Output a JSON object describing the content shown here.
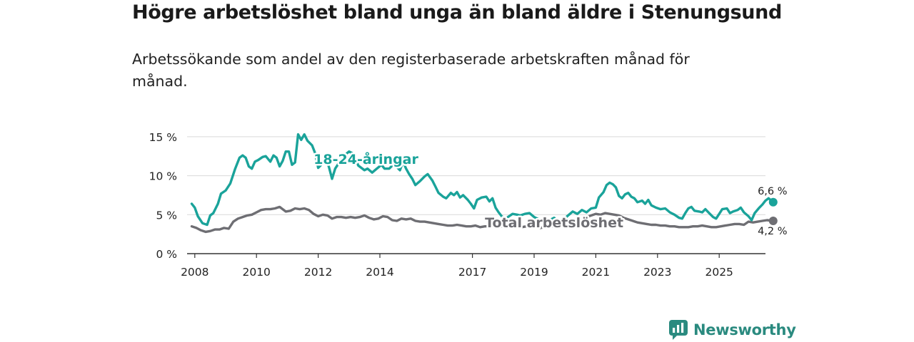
{
  "header": {
    "title": "Högre arbetslöshet bland unga än bland äldre i Stenungsund",
    "subtitle": "Arbetssökande som andel av den registerbaserade arbetskraften månad för månad."
  },
  "brand": {
    "name": "Newsworthy",
    "color": "#2a8a7f"
  },
  "chart_data": {
    "type": "line",
    "title": "Högre arbetslöshet bland unga än bland äldre i Stenungsund",
    "xlabel": "",
    "ylabel": "",
    "ylim": [
      0,
      17
    ],
    "yticks": [
      0,
      5,
      10,
      15
    ],
    "ytick_labels": [
      "0 %",
      "5 %",
      "10 %",
      "15 %"
    ],
    "xlim": [
      2007.75,
      2026.5
    ],
    "xticks": [
      2008,
      2010,
      2012,
      2014,
      2017,
      2019,
      2021,
      2023,
      2025
    ],
    "xtick_labels": [
      "2008",
      "2010",
      "2012",
      "2014",
      "2017",
      "2019",
      "2021",
      "2023",
      "2025"
    ],
    "grid": true,
    "series": [
      {
        "name": "18-24-åringar",
        "label": "18-24-åringar",
        "color": "#1aa39a",
        "end_label": "6,6 %",
        "points": [
          [
            2007.9,
            6.4
          ],
          [
            2008.0,
            5.9
          ],
          [
            2008.1,
            4.8
          ],
          [
            2008.25,
            3.9
          ],
          [
            2008.4,
            3.7
          ],
          [
            2008.5,
            4.9
          ],
          [
            2008.6,
            5.2
          ],
          [
            2008.75,
            6.4
          ],
          [
            2008.85,
            7.7
          ],
          [
            2009.0,
            8.1
          ],
          [
            2009.15,
            9.0
          ],
          [
            2009.3,
            10.8
          ],
          [
            2009.45,
            12.3
          ],
          [
            2009.55,
            12.6
          ],
          [
            2009.65,
            12.3
          ],
          [
            2009.75,
            11.2
          ],
          [
            2009.85,
            10.9
          ],
          [
            2009.95,
            11.8
          ],
          [
            2010.05,
            12.0
          ],
          [
            2010.2,
            12.4
          ],
          [
            2010.3,
            12.5
          ],
          [
            2010.45,
            11.8
          ],
          [
            2010.55,
            12.6
          ],
          [
            2010.65,
            12.3
          ],
          [
            2010.75,
            11.2
          ],
          [
            2010.85,
            11.9
          ],
          [
            2010.95,
            13.1
          ],
          [
            2011.05,
            13.1
          ],
          [
            2011.15,
            11.4
          ],
          [
            2011.25,
            11.7
          ],
          [
            2011.35,
            15.3
          ],
          [
            2011.45,
            14.6
          ],
          [
            2011.55,
            15.3
          ],
          [
            2011.65,
            14.5
          ],
          [
            2011.8,
            13.9
          ],
          [
            2011.9,
            12.9
          ],
          [
            2012.0,
            11.0
          ],
          [
            2012.1,
            11.4
          ],
          [
            2012.25,
            12.3
          ],
          [
            2012.35,
            11.1
          ],
          [
            2012.45,
            9.6
          ],
          [
            2012.55,
            10.9
          ],
          [
            2012.7,
            11.8
          ],
          [
            2012.85,
            12.6
          ],
          [
            2013.0,
            13.1
          ],
          [
            2013.1,
            12.9
          ],
          [
            2013.2,
            12.2
          ],
          [
            2013.3,
            11.3
          ],
          [
            2013.4,
            11.0
          ],
          [
            2013.5,
            10.7
          ],
          [
            2013.6,
            10.9
          ],
          [
            2013.75,
            10.4
          ],
          [
            2013.9,
            10.9
          ],
          [
            2014.05,
            11.4
          ],
          [
            2014.15,
            10.9
          ],
          [
            2014.3,
            10.9
          ],
          [
            2014.4,
            11.3
          ],
          [
            2014.55,
            11.1
          ],
          [
            2014.65,
            10.7
          ],
          [
            2014.75,
            11.8
          ],
          [
            2014.85,
            10.9
          ],
          [
            2014.95,
            10.2
          ],
          [
            2015.05,
            9.6
          ],
          [
            2015.15,
            8.8
          ],
          [
            2015.3,
            9.3
          ],
          [
            2015.45,
            9.9
          ],
          [
            2015.55,
            10.2
          ],
          [
            2015.7,
            9.4
          ],
          [
            2015.8,
            8.6
          ],
          [
            2015.9,
            7.8
          ],
          [
            2016.05,
            7.3
          ],
          [
            2016.15,
            7.1
          ],
          [
            2016.3,
            7.8
          ],
          [
            2016.4,
            7.5
          ],
          [
            2016.5,
            7.9
          ],
          [
            2016.6,
            7.2
          ],
          [
            2016.7,
            7.5
          ],
          [
            2016.85,
            6.9
          ],
          [
            2016.95,
            6.4
          ],
          [
            2017.05,
            5.8
          ],
          [
            2017.15,
            6.9
          ],
          [
            2017.3,
            7.2
          ],
          [
            2017.45,
            7.3
          ],
          [
            2017.55,
            6.7
          ],
          [
            2017.65,
            7.1
          ],
          [
            2017.75,
            5.9
          ],
          [
            2017.85,
            5.3
          ],
          [
            2017.95,
            4.8
          ],
          [
            2018.05,
            4.5
          ],
          [
            2018.15,
            4.7
          ],
          [
            2018.3,
            5.1
          ],
          [
            2018.45,
            5.0
          ],
          [
            2018.55,
            4.9
          ],
          [
            2018.7,
            5.1
          ],
          [
            2018.85,
            5.2
          ],
          [
            2019.0,
            4.7
          ],
          [
            2019.1,
            4.5
          ],
          [
            2019.2,
            4.3
          ],
          [
            2019.35,
            4.2
          ],
          [
            2019.5,
            4.3
          ],
          [
            2019.65,
            4.6
          ],
          [
            2019.8,
            4.0
          ],
          [
            2019.95,
            4.4
          ],
          [
            2020.1,
            4.9
          ],
          [
            2020.25,
            5.4
          ],
          [
            2020.4,
            5.1
          ],
          [
            2020.55,
            5.6
          ],
          [
            2020.7,
            5.3
          ],
          [
            2020.85,
            5.8
          ],
          [
            2021.0,
            5.9
          ],
          [
            2021.1,
            7.2
          ],
          [
            2021.25,
            7.9
          ],
          [
            2021.35,
            8.8
          ],
          [
            2021.45,
            9.1
          ],
          [
            2021.55,
            8.9
          ],
          [
            2021.65,
            8.5
          ],
          [
            2021.75,
            7.4
          ],
          [
            2021.85,
            7.1
          ],
          [
            2021.95,
            7.6
          ],
          [
            2022.05,
            7.8
          ],
          [
            2022.15,
            7.3
          ],
          [
            2022.25,
            7.1
          ],
          [
            2022.35,
            6.6
          ],
          [
            2022.5,
            6.8
          ],
          [
            2022.6,
            6.4
          ],
          [
            2022.7,
            6.9
          ],
          [
            2022.8,
            6.2
          ],
          [
            2022.95,
            5.9
          ],
          [
            2023.1,
            5.7
          ],
          [
            2023.25,
            5.8
          ],
          [
            2023.4,
            5.3
          ],
          [
            2023.55,
            5.0
          ],
          [
            2023.7,
            4.6
          ],
          [
            2023.8,
            4.5
          ],
          [
            2023.9,
            5.2
          ],
          [
            2024.0,
            5.8
          ],
          [
            2024.1,
            6.0
          ],
          [
            2024.2,
            5.5
          ],
          [
            2024.35,
            5.4
          ],
          [
            2024.45,
            5.3
          ],
          [
            2024.55,
            5.7
          ],
          [
            2024.7,
            5.1
          ],
          [
            2024.8,
            4.7
          ],
          [
            2024.9,
            4.5
          ],
          [
            2025.0,
            5.1
          ],
          [
            2025.1,
            5.7
          ],
          [
            2025.25,
            5.8
          ],
          [
            2025.35,
            5.2
          ],
          [
            2025.45,
            5.4
          ],
          [
            2025.6,
            5.6
          ],
          [
            2025.7,
            5.9
          ],
          [
            2025.8,
            5.3
          ],
          [
            2025.95,
            4.8
          ],
          [
            2026.05,
            4.3
          ],
          [
            2026.15,
            5.2
          ],
          [
            2026.3,
            5.9
          ],
          [
            2026.4,
            6.3
          ],
          [
            2026.5,
            6.8
          ],
          [
            2026.6,
            7.1
          ],
          [
            2026.75,
            6.6
          ]
        ]
      },
      {
        "name": "Total arbetslöshet",
        "label": "Total arbetslöshet",
        "color": "#6e6e73",
        "end_label": "4,2 %",
        "points": [
          [
            2007.9,
            3.5
          ],
          [
            2008.05,
            3.3
          ],
          [
            2008.2,
            3.0
          ],
          [
            2008.35,
            2.8
          ],
          [
            2008.5,
            2.9
          ],
          [
            2008.65,
            3.1
          ],
          [
            2008.8,
            3.1
          ],
          [
            2008.95,
            3.3
          ],
          [
            2009.1,
            3.2
          ],
          [
            2009.25,
            4.1
          ],
          [
            2009.4,
            4.5
          ],
          [
            2009.55,
            4.7
          ],
          [
            2009.7,
            4.9
          ],
          [
            2009.85,
            5.0
          ],
          [
            2010.0,
            5.3
          ],
          [
            2010.15,
            5.6
          ],
          [
            2010.3,
            5.7
          ],
          [
            2010.45,
            5.7
          ],
          [
            2010.6,
            5.8
          ],
          [
            2010.75,
            6.0
          ],
          [
            2010.85,
            5.7
          ],
          [
            2010.95,
            5.4
          ],
          [
            2011.1,
            5.5
          ],
          [
            2011.25,
            5.8
          ],
          [
            2011.4,
            5.7
          ],
          [
            2011.55,
            5.8
          ],
          [
            2011.7,
            5.6
          ],
          [
            2011.85,
            5.1
          ],
          [
            2012.0,
            4.8
          ],
          [
            2012.15,
            5.0
          ],
          [
            2012.3,
            4.9
          ],
          [
            2012.45,
            4.5
          ],
          [
            2012.6,
            4.7
          ],
          [
            2012.75,
            4.7
          ],
          [
            2012.9,
            4.6
          ],
          [
            2013.05,
            4.7
          ],
          [
            2013.2,
            4.6
          ],
          [
            2013.35,
            4.7
          ],
          [
            2013.5,
            4.9
          ],
          [
            2013.65,
            4.6
          ],
          [
            2013.8,
            4.4
          ],
          [
            2013.95,
            4.5
          ],
          [
            2014.1,
            4.8
          ],
          [
            2014.25,
            4.7
          ],
          [
            2014.4,
            4.3
          ],
          [
            2014.55,
            4.2
          ],
          [
            2014.7,
            4.5
          ],
          [
            2014.85,
            4.4
          ],
          [
            2015.0,
            4.5
          ],
          [
            2015.15,
            4.2
          ],
          [
            2015.3,
            4.1
          ],
          [
            2015.45,
            4.1
          ],
          [
            2015.6,
            4.0
          ],
          [
            2015.75,
            3.9
          ],
          [
            2015.9,
            3.8
          ],
          [
            2016.05,
            3.7
          ],
          [
            2016.2,
            3.6
          ],
          [
            2016.35,
            3.6
          ],
          [
            2016.5,
            3.7
          ],
          [
            2016.65,
            3.6
          ],
          [
            2016.8,
            3.5
          ],
          [
            2016.95,
            3.5
          ],
          [
            2017.1,
            3.6
          ],
          [
            2017.25,
            3.4
          ],
          [
            2017.4,
            3.5
          ],
          [
            2017.55,
            3.5
          ],
          [
            2017.7,
            3.6
          ],
          [
            2017.85,
            3.5
          ],
          [
            2018.0,
            3.5
          ],
          [
            2018.15,
            3.4
          ],
          [
            2018.3,
            3.5
          ],
          [
            2018.45,
            3.5
          ],
          [
            2018.6,
            3.4
          ],
          [
            2018.75,
            3.5
          ],
          [
            2018.9,
            3.4
          ],
          [
            2019.05,
            3.4
          ],
          [
            2019.2,
            3.3
          ],
          [
            2019.35,
            3.4
          ],
          [
            2019.5,
            3.5
          ],
          [
            2019.65,
            3.5
          ],
          [
            2019.8,
            3.6
          ],
          [
            2019.95,
            3.5
          ],
          [
            2020.1,
            3.6
          ],
          [
            2020.25,
            3.7
          ],
          [
            2020.4,
            3.9
          ],
          [
            2020.55,
            4.3
          ],
          [
            2020.7,
            4.7
          ],
          [
            2020.85,
            4.9
          ],
          [
            2021.0,
            5.1
          ],
          [
            2021.15,
            5.0
          ],
          [
            2021.3,
            5.2
          ],
          [
            2021.45,
            5.1
          ],
          [
            2021.6,
            5.0
          ],
          [
            2021.75,
            4.9
          ],
          [
            2021.9,
            4.6
          ],
          [
            2022.05,
            4.4
          ],
          [
            2022.2,
            4.2
          ],
          [
            2022.35,
            4.0
          ],
          [
            2022.5,
            3.9
          ],
          [
            2022.65,
            3.8
          ],
          [
            2022.8,
            3.7
          ],
          [
            2022.95,
            3.7
          ],
          [
            2023.1,
            3.6
          ],
          [
            2023.25,
            3.6
          ],
          [
            2023.4,
            3.5
          ],
          [
            2023.55,
            3.5
          ],
          [
            2023.7,
            3.4
          ],
          [
            2023.85,
            3.4
          ],
          [
            2024.0,
            3.4
          ],
          [
            2024.15,
            3.5
          ],
          [
            2024.3,
            3.5
          ],
          [
            2024.45,
            3.6
          ],
          [
            2024.6,
            3.5
          ],
          [
            2024.75,
            3.4
          ],
          [
            2024.9,
            3.4
          ],
          [
            2025.05,
            3.5
          ],
          [
            2025.2,
            3.6
          ],
          [
            2025.35,
            3.7
          ],
          [
            2025.5,
            3.8
          ],
          [
            2025.65,
            3.8
          ],
          [
            2025.8,
            3.7
          ],
          [
            2025.95,
            4.1
          ],
          [
            2026.1,
            4.0
          ],
          [
            2026.25,
            4.1
          ],
          [
            2026.4,
            4.2
          ],
          [
            2026.55,
            4.3
          ],
          [
            2026.75,
            4.2
          ]
        ]
      }
    ]
  }
}
